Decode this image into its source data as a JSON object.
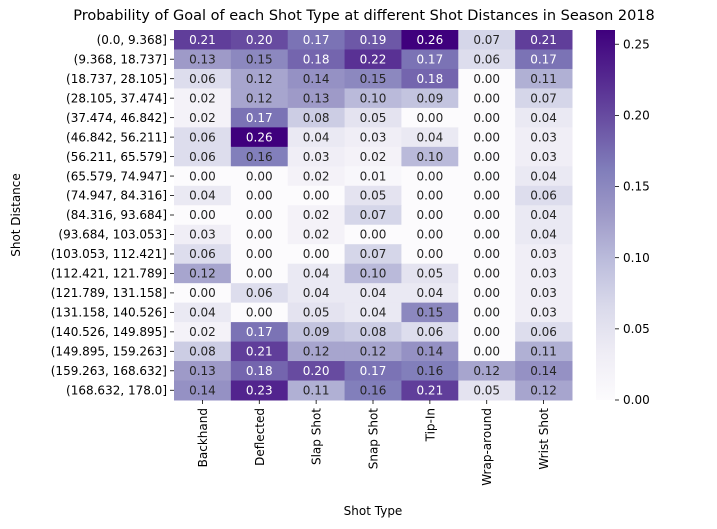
{
  "chart_data": {
    "type": "heatmap",
    "title": "Probability of Goal of each Shot Type at different Shot Distances in Season 2018",
    "xlabel": "Shot Type",
    "ylabel": "Shot Distance",
    "x_categories": [
      "Backhand",
      "Deflected",
      "Slap Shot",
      "Snap Shot",
      "Tip-In",
      "Wrap-around",
      "Wrist Shot"
    ],
    "y_categories": [
      "(0.0, 9.368]",
      "(9.368, 18.737]",
      "(18.737, 28.105]",
      "(28.105, 37.474]",
      "(37.474, 46.842]",
      "(46.842, 56.211]",
      "(56.211, 65.579]",
      "(65.579, 74.947]",
      "(74.947, 84.316]",
      "(84.316, 93.684]",
      "(93.684, 103.053]",
      "(103.053, 112.421]",
      "(112.421, 121.789]",
      "(121.789, 131.158]",
      "(131.158, 140.526]",
      "(140.526, 149.895]",
      "(149.895, 159.263]",
      "(159.263, 168.632]",
      "(168.632, 178.0]"
    ],
    "values": [
      [
        0.21,
        0.2,
        0.17,
        0.19,
        0.26,
        0.07,
        0.21
      ],
      [
        0.13,
        0.15,
        0.18,
        0.22,
        0.17,
        0.06,
        0.17
      ],
      [
        0.06,
        0.12,
        0.14,
        0.15,
        0.18,
        0.0,
        0.11
      ],
      [
        0.02,
        0.12,
        0.13,
        0.1,
        0.09,
        0.0,
        0.07
      ],
      [
        0.02,
        0.17,
        0.08,
        0.05,
        0.0,
        0.0,
        0.04
      ],
      [
        0.06,
        0.26,
        0.04,
        0.03,
        0.04,
        0.0,
        0.03
      ],
      [
        0.06,
        0.16,
        0.03,
        0.02,
        0.1,
        0.0,
        0.03
      ],
      [
        0.0,
        0.0,
        0.02,
        0.01,
        0.0,
        0.0,
        0.04
      ],
      [
        0.04,
        0.0,
        0.0,
        0.05,
        0.0,
        0.0,
        0.06
      ],
      [
        0.0,
        0.0,
        0.02,
        0.07,
        0.0,
        0.0,
        0.04
      ],
      [
        0.03,
        0.0,
        0.02,
        0.0,
        0.0,
        0.0,
        0.04
      ],
      [
        0.06,
        0.0,
        0.0,
        0.07,
        0.0,
        0.0,
        0.03
      ],
      [
        0.12,
        0.0,
        0.04,
        0.1,
        0.05,
        0.0,
        0.03
      ],
      [
        0.0,
        0.06,
        0.04,
        0.04,
        0.04,
        0.0,
        0.03
      ],
      [
        0.04,
        0.0,
        0.05,
        0.04,
        0.15,
        0.0,
        0.03
      ],
      [
        0.02,
        0.17,
        0.09,
        0.08,
        0.06,
        0.0,
        0.06
      ],
      [
        0.08,
        0.21,
        0.12,
        0.12,
        0.14,
        0.0,
        0.11
      ],
      [
        0.13,
        0.18,
        0.2,
        0.17,
        0.16,
        0.12,
        0.14
      ],
      [
        0.14,
        0.23,
        0.11,
        0.16,
        0.21,
        0.05,
        0.12
      ]
    ],
    "value_range": [
      0.0,
      0.26
    ],
    "colormap": "Purples",
    "colorbar_ticks": [
      "0.00",
      "0.05",
      "0.10",
      "0.15",
      "0.20",
      "0.25"
    ],
    "colorbar_tick_values": [
      0.0,
      0.05,
      0.1,
      0.15,
      0.2,
      0.25
    ],
    "colormap_stops": [
      "#fcfbfd",
      "#efedf5",
      "#dadaeb",
      "#bcbddc",
      "#9e9ac8",
      "#807dba",
      "#6a51a3",
      "#54278f",
      "#3f007d"
    ],
    "annotation_light_text": "#ffffff",
    "annotation_dark_text": "#262626"
  }
}
